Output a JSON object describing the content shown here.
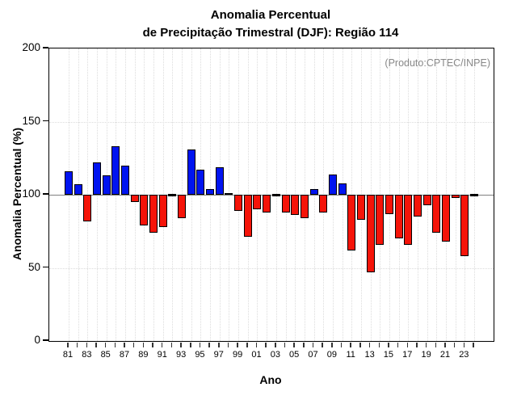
{
  "chart_data": {
    "type": "bar",
    "title_line1": "Anomalia Percentual",
    "title_line2": "de Precipitação Trimestral (DJF): Região 114",
    "annotation": "(Produto:CPTEC/INPE)",
    "xlabel": "Ano",
    "ylabel": "Anomalia Percentual (%)",
    "ylim": [
      0,
      200
    ],
    "yticks": [
      0,
      50,
      100,
      150,
      200
    ],
    "baseline": 100,
    "grid": "dotted vertical per year, dotted horizontal at 50/100/150, solid gray line at 100",
    "legend_position": "none",
    "xtick_label_step": 2,
    "colors": {
      "above_baseline": "#0014f0",
      "below_baseline": "#f51409",
      "baseline_bar": "#000000",
      "baseline_line": "#808080",
      "annotation": "#888888",
      "grid": "#dcdcdc"
    },
    "categories": [
      "81",
      "82",
      "83",
      "84",
      "85",
      "86",
      "87",
      "88",
      "89",
      "90",
      "91",
      "92",
      "93",
      "94",
      "95",
      "96",
      "97",
      "98",
      "99",
      "00",
      "01",
      "02",
      "03",
      "04",
      "05",
      "06",
      "07",
      "08",
      "09",
      "10",
      "11",
      "12",
      "13",
      "14",
      "15",
      "16",
      "17",
      "18",
      "19",
      "20",
      "21",
      "22",
      "23",
      "24"
    ],
    "values": [
      116,
      107,
      82,
      122,
      113,
      133,
      120,
      95,
      79,
      74,
      78,
      100,
      84,
      131,
      117,
      104,
      119,
      101,
      89,
      71,
      90,
      88,
      100,
      88,
      86,
      84,
      104,
      88,
      114,
      108,
      62,
      83,
      47,
      66,
      87,
      70,
      66,
      85,
      93,
      74,
      68,
      98,
      58,
      100
    ]
  }
}
